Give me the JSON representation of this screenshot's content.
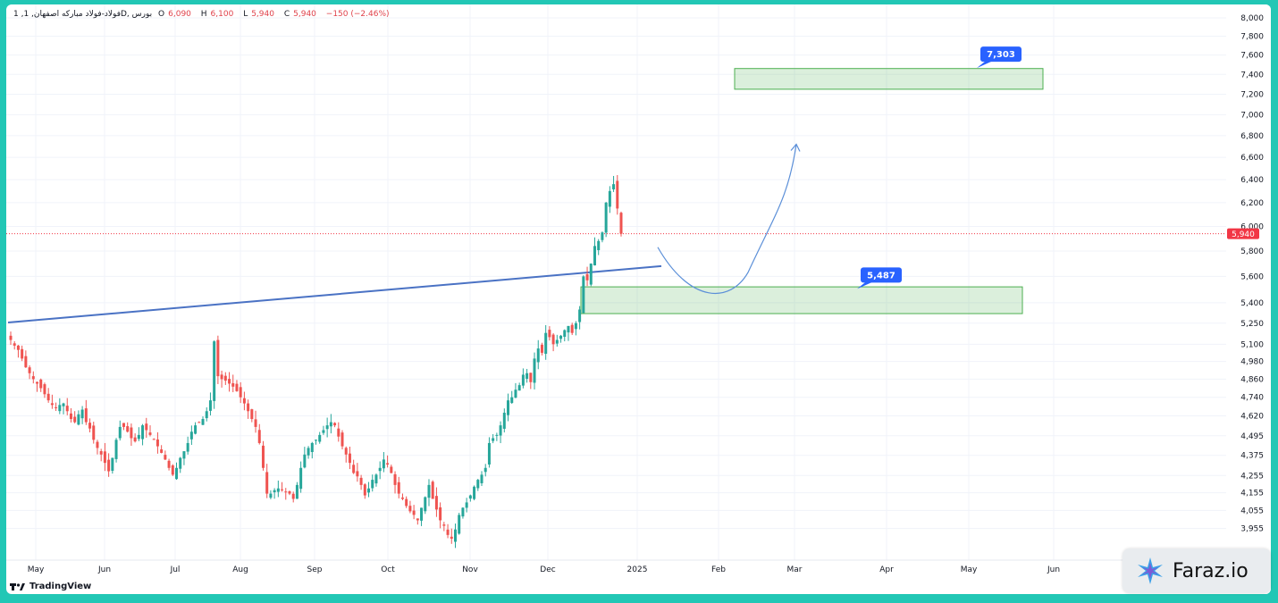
{
  "header": {
    "symbol": "1 ,فولاد-فولاد مبارکه اصفهان, 1D, بورس",
    "open_label": "O",
    "open": "6,090",
    "high_label": "H",
    "high": "6,100",
    "low_label": "L",
    "low": "5,940",
    "close_label": "C",
    "close": "5,940",
    "change": "−150 (−2.46%)"
  },
  "branding": {
    "tv": "TradingView",
    "watermark": "Faraz.io"
  },
  "colors": {
    "up": "#26a69a",
    "down": "#ef5350",
    "zone": "#4caf50",
    "trend": "#4a72c4",
    "badge": "#2962ff",
    "price_line": "#f23645"
  },
  "chart_data": {
    "type": "candlestick",
    "x_ticks": [
      "May",
      "Jun",
      "Jul",
      "Aug",
      "Sep",
      "Oct",
      "Nov",
      "Dec",
      "2025",
      "Feb",
      "Mar",
      "Apr",
      "May",
      "Jun"
    ],
    "y_ticks": [
      "8,000",
      "7,800",
      "7,600",
      "7,400",
      "7,200",
      "7,000",
      "6,800",
      "6,600",
      "6,400",
      "6,200",
      "6,000",
      "5,800",
      "5,600",
      "5,400",
      "5,250",
      "5,100",
      "4,980",
      "4,860",
      "4,740",
      "4,620",
      "4,495",
      "4,375",
      "4,255",
      "4,155",
      "4,055",
      "3,955"
    ],
    "y_scale": "log",
    "last_price": "5,940",
    "series": [
      {
        "name": "",
        "close": [
          5130,
          5090,
          5060,
          5000,
          4940,
          4900,
          4860,
          4830,
          4800,
          4760,
          4720,
          4690,
          4670,
          4690,
          4700,
          4650,
          4600,
          4580,
          4630,
          4660,
          4580,
          4540,
          4470,
          4420,
          4380,
          4330,
          4280,
          4360,
          4470,
          4550,
          4550,
          4520,
          4480,
          4460,
          4500,
          4560,
          4530,
          4500,
          4470,
          4430,
          4390,
          4350,
          4300,
          4260,
          4300,
          4360,
          4400,
          4450,
          4520,
          4560,
          4580,
          4600,
          4650,
          4720,
          5120,
          4880,
          4860,
          4850,
          4830,
          4810,
          4780,
          4740,
          4700,
          4650,
          4600,
          4550,
          4450,
          4300,
          4150,
          4150,
          4170,
          4180,
          4170,
          4160,
          4150,
          4120,
          4200,
          4300,
          4380,
          4420,
          4450,
          4470,
          4500,
          4530,
          4560,
          4580,
          4560,
          4490,
          4430,
          4380,
          4330,
          4270,
          4250,
          4200,
          4140,
          4180,
          4230,
          4260,
          4300,
          4350,
          4320,
          4270,
          4200,
          4150,
          4120,
          4080,
          4050,
          4030,
          4000,
          4070,
          4130,
          4200,
          4120,
          4060,
          4000,
          3970,
          3920,
          3900,
          3950,
          4030,
          4070,
          4100,
          4140,
          4190,
          4230,
          4260,
          4300,
          4450,
          4480,
          4500,
          4560,
          4640,
          4720,
          4740,
          4790,
          4820,
          4890,
          4900,
          4840,
          5000,
          5070,
          5040,
          5180,
          5150,
          5100,
          5130,
          5160,
          5200,
          5230,
          5180,
          5250,
          5350,
          5600,
          5570,
          5700,
          5840,
          5880,
          5950,
          6200,
          6300,
          6360,
          6150,
          5940
        ]
      }
    ],
    "annotations": {
      "trendline_from": {
        "date": "May",
        "price": 5255
      },
      "trendline_to": {
        "date": "2025",
        "price": 5680
      },
      "target_zone": {
        "label": "7,303",
        "low": 7250,
        "high": 7460
      },
      "support_zone": {
        "label": "5,487",
        "low": 5320,
        "high": 5520
      }
    }
  }
}
